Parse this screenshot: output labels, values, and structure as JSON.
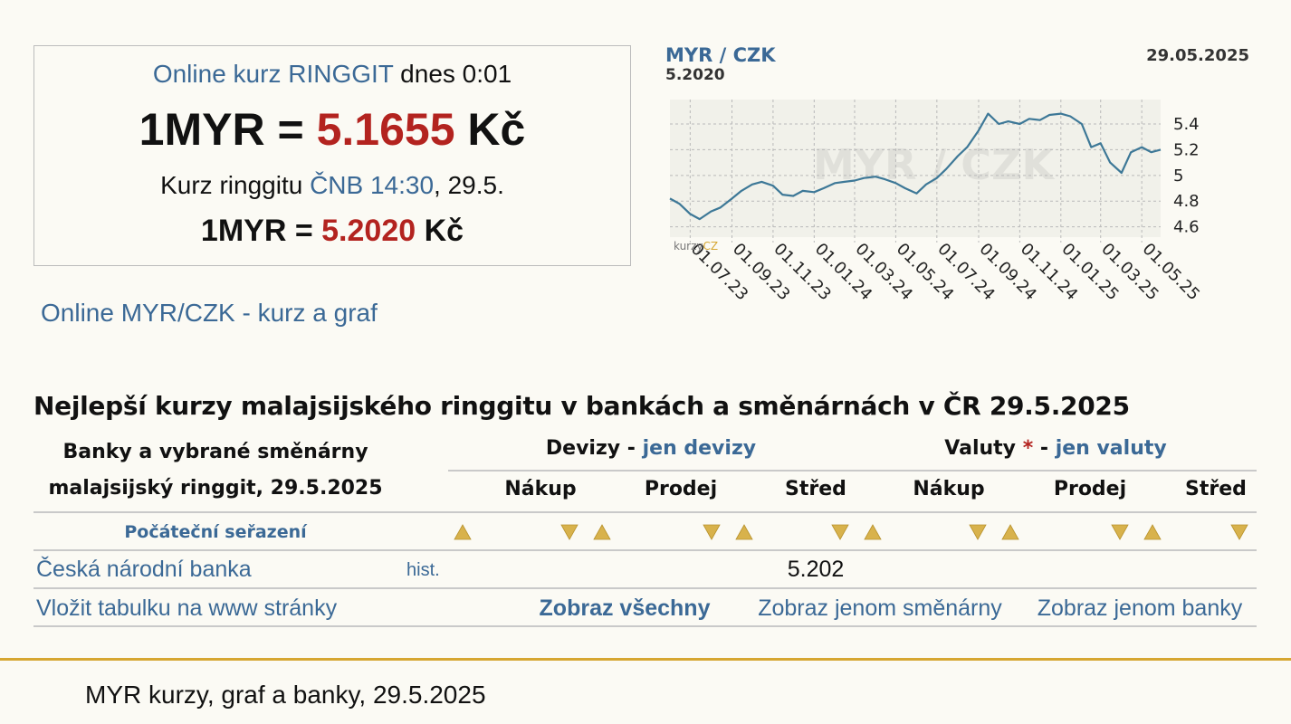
{
  "box": {
    "line1_link": "Online kurz RINGGIT",
    "line1_rest": "dnes 0:01",
    "rate1_left": "1MYR =",
    "rate1_value": "5.1655",
    "rate1_unit": "Kč",
    "line2_left": "Kurz ringgitu",
    "line2_link": "ČNB 14:30",
    "line2_rest": ", 29.5.",
    "rate2_left": "1MYR =",
    "rate2_value": "5.2020",
    "rate2_unit": "Kč"
  },
  "online_link": "Online MYR/CZK - kurz a graf",
  "chart_data": {
    "type": "line",
    "title": "MYR / CZK",
    "subtitle": "5.2020",
    "date": "29.05.2025",
    "watermark": "MYR / CZK",
    "logo": [
      "kurzy",
      "CZ"
    ],
    "x": [
      "01.06.23",
      "15.06.23",
      "01.07.23",
      "15.07.23",
      "01.08.23",
      "15.08.23",
      "01.09.23",
      "15.09.23",
      "01.10.23",
      "15.10.23",
      "01.11.23",
      "15.11.23",
      "01.12.23",
      "15.12.23",
      "01.01.24",
      "15.01.24",
      "01.02.24",
      "15.02.24",
      "01.03.24",
      "15.03.24",
      "01.04.24",
      "15.04.24",
      "01.05.24",
      "15.05.24",
      "01.06.24",
      "15.06.24",
      "01.07.24",
      "15.07.24",
      "01.08.24",
      "15.08.24",
      "01.09.24",
      "15.09.24",
      "01.10.24",
      "15.10.24",
      "01.11.24",
      "15.11.24",
      "01.12.24",
      "15.12.24",
      "01.01.25",
      "15.01.25",
      "01.02.25",
      "15.02.25",
      "01.03.25",
      "15.03.25",
      "01.04.25",
      "15.04.25",
      "01.05.25",
      "15.05.25",
      "29.05.25"
    ],
    "series": [
      {
        "name": "MYR/CZK",
        "color": "#3d7897",
        "values": [
          4.82,
          4.78,
          4.7,
          4.66,
          4.72,
          4.75,
          4.82,
          4.88,
          4.93,
          4.95,
          4.92,
          4.85,
          4.84,
          4.88,
          4.87,
          4.9,
          4.94,
          4.95,
          4.96,
          4.98,
          4.99,
          4.97,
          4.94,
          4.9,
          4.86,
          4.93,
          4.98,
          5.05,
          5.15,
          5.22,
          5.35,
          5.48,
          5.4,
          5.42,
          5.4,
          5.44,
          5.43,
          5.47,
          5.48,
          5.46,
          5.4,
          5.22,
          5.25,
          5.1,
          5.02,
          5.18,
          5.22,
          5.18,
          5.2
        ]
      }
    ],
    "xlim": [
      "01.06.23",
      "29.05.25"
    ],
    "xticks": [
      "01.07.23",
      "01.09.23",
      "01.11.23",
      "01.01.24",
      "01.03.24",
      "01.05.24",
      "01.07.24",
      "01.09.24",
      "01.11.24",
      "01.01.25",
      "01.03.25",
      "01.05.25"
    ],
    "ylim": [
      4.52,
      5.59
    ],
    "yticks": [
      4.6,
      4.8,
      5,
      5.2,
      5.4
    ],
    "grid": true
  },
  "table": {
    "title": "Nejlepší kurzy malajsijského ringgitu v bankách a směnárnách v ČR 29.5.2025",
    "col1_header": [
      "Banky a vybrané směnárny",
      "malajsijský ringgit, 29.5.2025"
    ],
    "devizy_label": "Devizy",
    "separator": "-",
    "devizy_link": "jen devizy",
    "valuty_label": "Valuty",
    "valuty_star": "*",
    "valuty_link": "jen valuty",
    "subheaders": [
      "Nákup",
      "Prodej",
      "Střed",
      "Nákup",
      "Prodej",
      "Střed"
    ],
    "sort_label": "Počáteční seřazení",
    "rows": [
      {
        "name": "Česká národní banka",
        "hist": "hist.",
        "values": [
          null,
          null,
          5.202,
          null,
          null,
          null
        ]
      }
    ],
    "links": [
      "Vložit tabulku na www stránky",
      "Zobraz všechny",
      "Zobraz jenom směnárny",
      "Zobraz jenom banky"
    ]
  },
  "footer": "MYR kurzy, graf a banky, 29.5.2025"
}
